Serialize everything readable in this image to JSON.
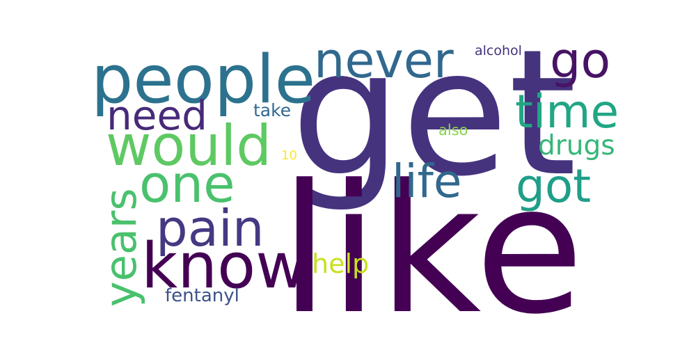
{
  "words": {
    "get": {
      "text": "get",
      "color": "#46337e"
    },
    "like": {
      "text": "like",
      "color": "#440154"
    },
    "people": {
      "text": "people",
      "color": "#2c728e"
    },
    "never": {
      "text": "never",
      "color": "#31688e"
    },
    "go": {
      "text": "go",
      "color": "#471365"
    },
    "alcohol": {
      "text": "alcohol",
      "color": "#46327e"
    },
    "need": {
      "text": "need",
      "color": "#472a7a"
    },
    "take": {
      "text": "take",
      "color": "#31688e"
    },
    "time": {
      "text": "time",
      "color": "#21a685"
    },
    "would": {
      "text": "would",
      "color": "#5ec962"
    },
    "also": {
      "text": "also",
      "color": "#86d549"
    },
    "drugs": {
      "text": "drugs",
      "color": "#35b779"
    },
    "ten": {
      "text": "10",
      "color": "#fde725"
    },
    "one": {
      "text": "one",
      "color": "#4ac16d"
    },
    "life": {
      "text": "life",
      "color": "#31688e"
    },
    "got": {
      "text": "got",
      "color": "#1f9e89"
    },
    "years": {
      "text": "years",
      "color": "#4ac16d"
    },
    "pain": {
      "text": "pain",
      "color": "#443983"
    },
    "know": {
      "text": "know",
      "color": "#440154"
    },
    "help": {
      "text": "help",
      "color": "#c8e020"
    },
    "fentanyl": {
      "text": "fentanyl",
      "color": "#3b528b"
    }
  }
}
